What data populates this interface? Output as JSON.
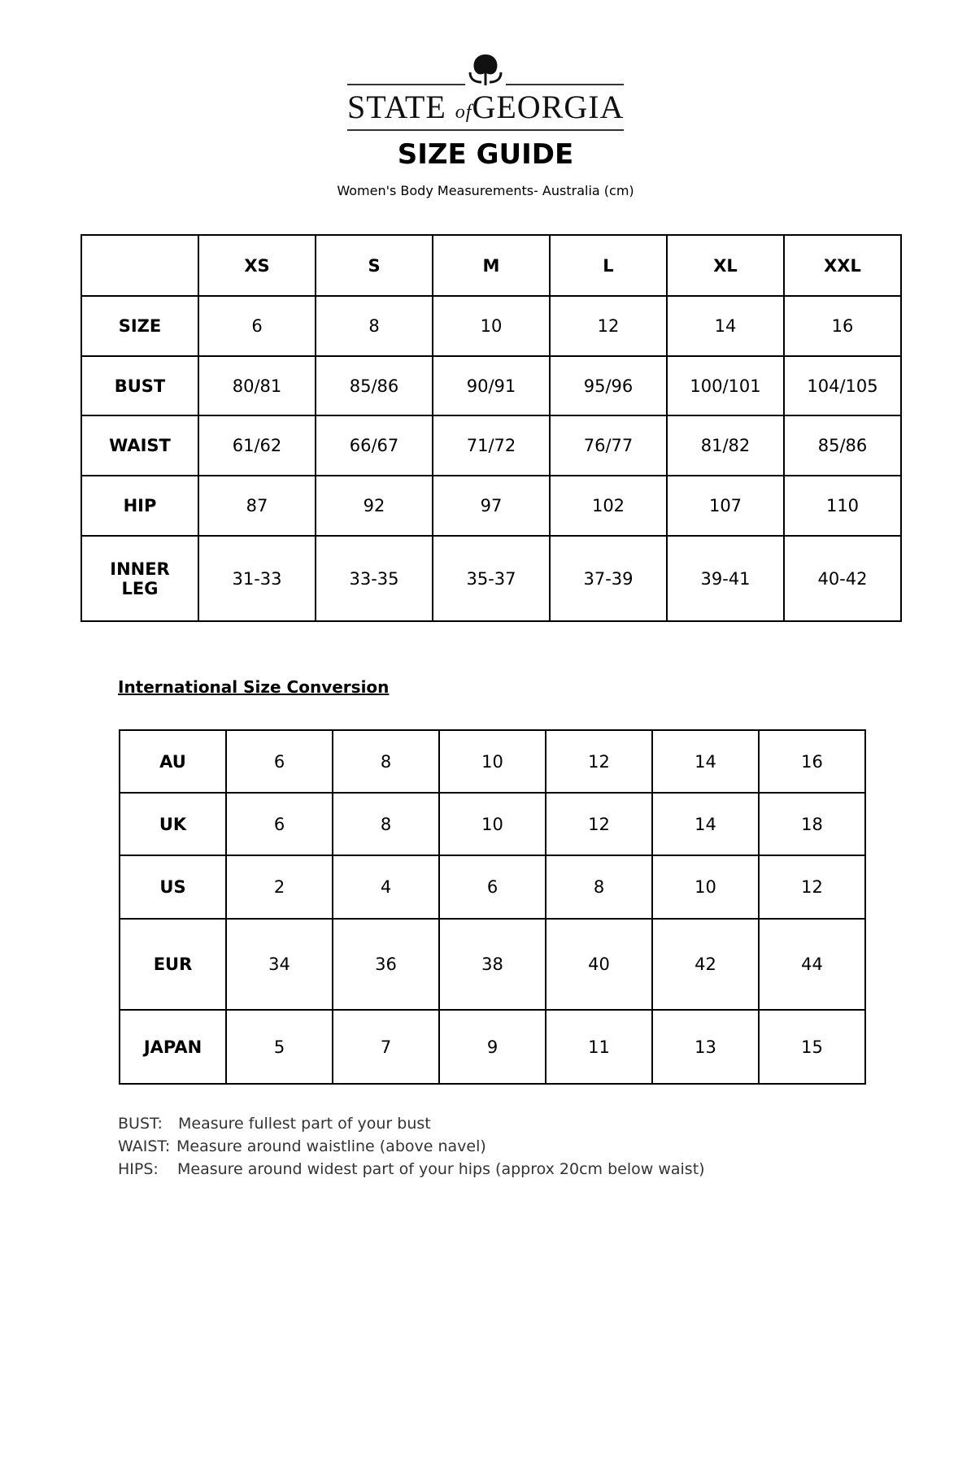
{
  "logo": {
    "brand_left": "STATE",
    "brand_of": "of",
    "brand_right": "GEORGIA"
  },
  "title": "SIZE GUIDE",
  "subtitle": "Women's Body Measurements- Australia (cm)",
  "body_table": {
    "headers": [
      "",
      "XS",
      "S",
      "M",
      "L",
      "XL",
      "XXL"
    ],
    "rows": [
      {
        "label": "SIZE",
        "values": [
          "6",
          "8",
          "10",
          "12",
          "14",
          "16"
        ]
      },
      {
        "label": "BUST",
        "values": [
          "80/81",
          "85/86",
          "90/91",
          "95/96",
          "100/101",
          "104/105"
        ]
      },
      {
        "label": "WAIST",
        "values": [
          "61/62",
          "66/67",
          "71/72",
          "76/77",
          "81/82",
          "85/86"
        ]
      },
      {
        "label": "HIP",
        "values": [
          "87",
          "92",
          "97",
          "102",
          "107",
          "110"
        ]
      },
      {
        "label": "INNER LEG",
        "values": [
          "31-33",
          "33-35",
          "35-37",
          "37-39",
          "39-41",
          "40-42"
        ]
      }
    ]
  },
  "conversion_title": "International Size Conversion",
  "conversion_table": {
    "rows": [
      {
        "label": "AU",
        "values": [
          "6",
          "8",
          "10",
          "12",
          "14",
          "16"
        ]
      },
      {
        "label": "UK",
        "values": [
          "6",
          "8",
          "10",
          "12",
          "14",
          "18"
        ]
      },
      {
        "label": "US",
        "values": [
          "2",
          "4",
          "6",
          "8",
          "10",
          "12"
        ]
      },
      {
        "label": "EUR",
        "values": [
          "34",
          "36",
          "38",
          "40",
          "42",
          "44"
        ]
      },
      {
        "label": "JAPAN",
        "values": [
          "5",
          "7",
          "9",
          "11",
          "13",
          "15"
        ]
      }
    ]
  },
  "notes": [
    {
      "key": "BUST:",
      "text": "Measure fullest part of your bust"
    },
    {
      "key": "WAIST:",
      "text": "Measure around waistline (above navel)"
    },
    {
      "key": "HIPS:",
      "text": "Measure around widest part of your hips (approx 20cm below waist)"
    }
  ]
}
